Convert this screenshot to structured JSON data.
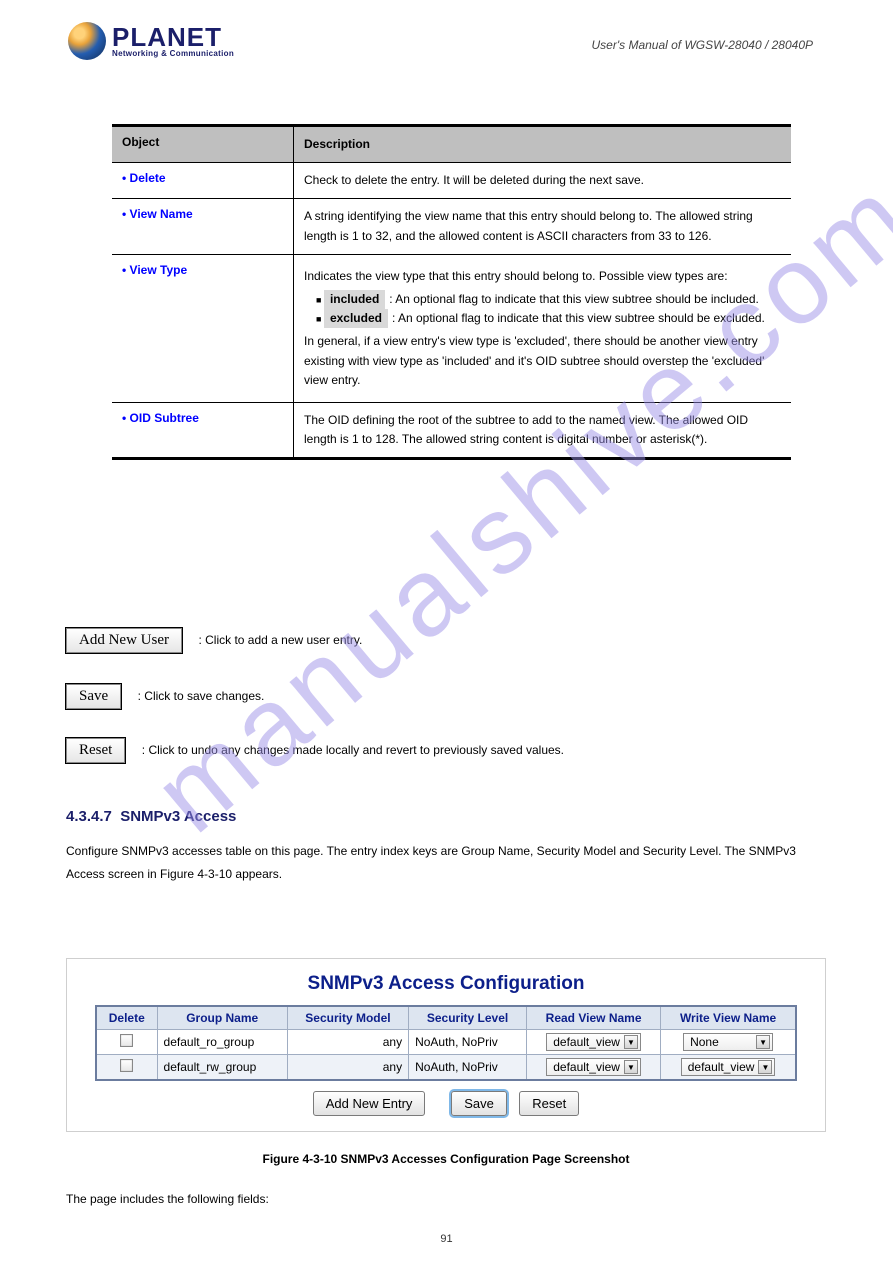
{
  "logo": {
    "brand": "PLANET",
    "sub": "Networking & Communication"
  },
  "header_right": "User's Manual of WGSW-28040 / 28040P",
  "watermark": "manualshive.com",
  "desc_table": {
    "head": {
      "c1": "Object",
      "c2": "Description"
    },
    "rows": [
      {
        "label": "• Delete",
        "body": "Check to delete the entry. It will be deleted during the next save."
      },
      {
        "label": "• View Name",
        "body": "A string identifying the view name that this entry should belong to. The allowed string length is 1 to 32, and the allowed content is ASCII characters from 33 to 126."
      },
      {
        "label": "• View Type",
        "body_intro": "Indicates the view type that this entry should belong to. Possible view types are:",
        "bullets": [
          {
            "tag": "included",
            "txt": ": An optional flag to indicate that this view subtree should be included."
          },
          {
            "tag": "excluded",
            "txt": ": An optional flag to indicate that this view subtree should be excluded."
          }
        ],
        "body_after": "In general, if a view entry's view type is 'excluded', there should be another view entry existing with view type as 'included' and it's OID subtree should overstep the 'excluded' view entry."
      },
      {
        "label": "• OID Subtree",
        "body": "The OID defining the root of the subtree to add to the named view. The allowed OID length is 1 to 128. The allowed string content is digital number or asterisk(*)."
      }
    ]
  },
  "buttons": {
    "add": {
      "label": "Add New User",
      "desc": ": Click to add a new user entry."
    },
    "save": {
      "label": "Save",
      "desc": ": Click to save changes."
    },
    "reset": {
      "label": "Reset",
      "desc": ": Click to undo any changes made locally and revert to previously saved values."
    }
  },
  "section": {
    "num": "4.3.4.7",
    "title": "SNMPv3 Access",
    "body": "Configure SNMPv3 accesses table on this page. The entry index keys are Group Name, Security Model and Security Level. The SNMPv3 Access screen in Figure 4-3-10 appears."
  },
  "fig": {
    "title": "SNMPv3 Access Configuration",
    "cols": [
      "Delete",
      "Group Name",
      "Security Model",
      "Security Level",
      "Read View Name",
      "Write View Name"
    ],
    "rows": [
      {
        "group": "default_ro_group",
        "model": "any",
        "level": "NoAuth, NoPriv",
        "read": "default_view",
        "write": "None"
      },
      {
        "group": "default_rw_group",
        "model": "any",
        "level": "NoAuth, NoPriv",
        "read": "default_view",
        "write": "default_view"
      }
    ],
    "btn_add": "Add New Entry",
    "btn_save": "Save",
    "btn_reset": "Reset",
    "caption_pre": "Figure 4-3-10",
    "caption_txt": " SNMPv3 Accesses Configuration Page Screenshot"
  },
  "postfig": "The page includes the following fields:",
  "pagenum": "91"
}
